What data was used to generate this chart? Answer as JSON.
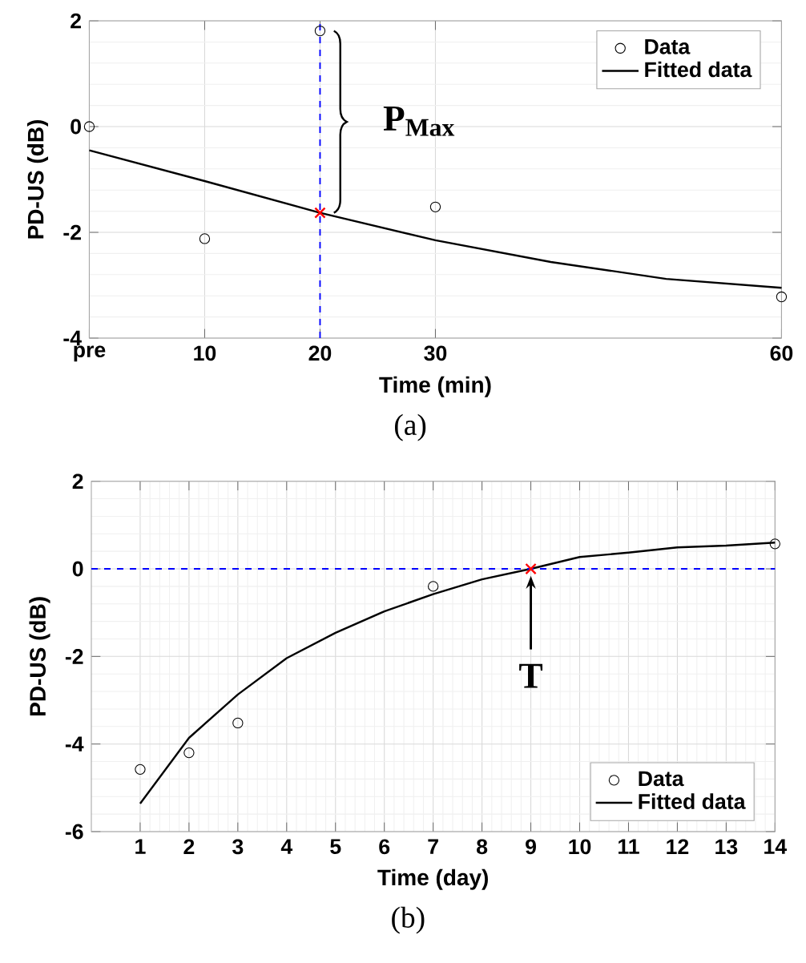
{
  "chart_data": [
    {
      "type": "scatter",
      "xlabel": "Time (min)",
      "ylabel": "PD-US (dB)",
      "xlim": [
        0,
        60
      ],
      "ylim": [
        -4,
        2
      ],
      "xticks": [
        {
          "value": 0,
          "label": "pre"
        },
        10,
        20,
        30,
        60
      ],
      "yticks": [
        -4,
        -2,
        0,
        2
      ],
      "series": [
        {
          "name": "Data",
          "marker": "circle",
          "color": "#000000",
          "x": [
            0,
            10,
            20,
            30,
            60
          ],
          "values": [
            0,
            -2.12,
            1.81,
            -1.52,
            -3.22
          ]
        },
        {
          "name": "Fitted data",
          "type": "line",
          "line_style": "solid",
          "color": "#000000",
          "x": [
            0,
            10,
            20,
            30,
            40,
            50,
            60
          ],
          "values": [
            -0.45,
            -1.03,
            -1.63,
            -2.15,
            -2.56,
            -2.88,
            -3.05
          ]
        },
        {
          "type": "scatter",
          "marker": "cross",
          "color": "#ff0000",
          "x": [
            20
          ],
          "values": [
            -1.63
          ]
        }
      ],
      "ref_lines": [
        {
          "axis": "x",
          "value": 20,
          "color": "#0000ff",
          "line_style": "dashed"
        }
      ],
      "annotations": [
        {
          "text": "P$_{Max}$",
          "x": 20,
          "y": 0.1
        },
        "(a)"
      ],
      "grid": true,
      "legend": "top right"
    },
    {
      "type": "scatter",
      "xlabel": "Time (day)",
      "ylabel": "PD-US (dB)",
      "xlim": [
        0,
        14
      ],
      "ylim": [
        -6,
        2
      ],
      "xticks": [
        1,
        2,
        3,
        4,
        5,
        6,
        7,
        8,
        9,
        10,
        11,
        12,
        13,
        14
      ],
      "yticks": [
        -6,
        -4,
        -2,
        0,
        2
      ],
      "series": [
        {
          "name": "Data",
          "marker": "circle",
          "color": "#000000",
          "x": [
            1,
            2,
            3,
            7,
            14
          ],
          "values": [
            -4.58,
            -4.2,
            -3.52,
            -0.4,
            0.57
          ]
        },
        {
          "name": "Fitted data",
          "type": "line",
          "line_style": "solid",
          "color": "#000000",
          "x": [
            1,
            2,
            3,
            4,
            5,
            6,
            7,
            8,
            9,
            10,
            11,
            12,
            13,
            14
          ],
          "values": [
            -5.36,
            -3.86,
            -2.87,
            -2.04,
            -1.46,
            -0.97,
            -0.58,
            -0.24,
            0,
            0.27,
            0.37,
            0.49,
            0.53,
            0.6
          ]
        },
        {
          "type": "scatter",
          "marker": "cross",
          "color": "#ff0000",
          "x": [
            9
          ],
          "values": [
            0
          ]
        }
      ],
      "ref_lines": [
        {
          "axis": "y",
          "value": 0,
          "color": "#0000ff",
          "line_style": "dashed"
        }
      ],
      "annotations": [
        {
          "text": "T",
          "x": 9,
          "y": 0
        },
        "(b)"
      ],
      "grid": true,
      "legend": "bottom right"
    }
  ]
}
